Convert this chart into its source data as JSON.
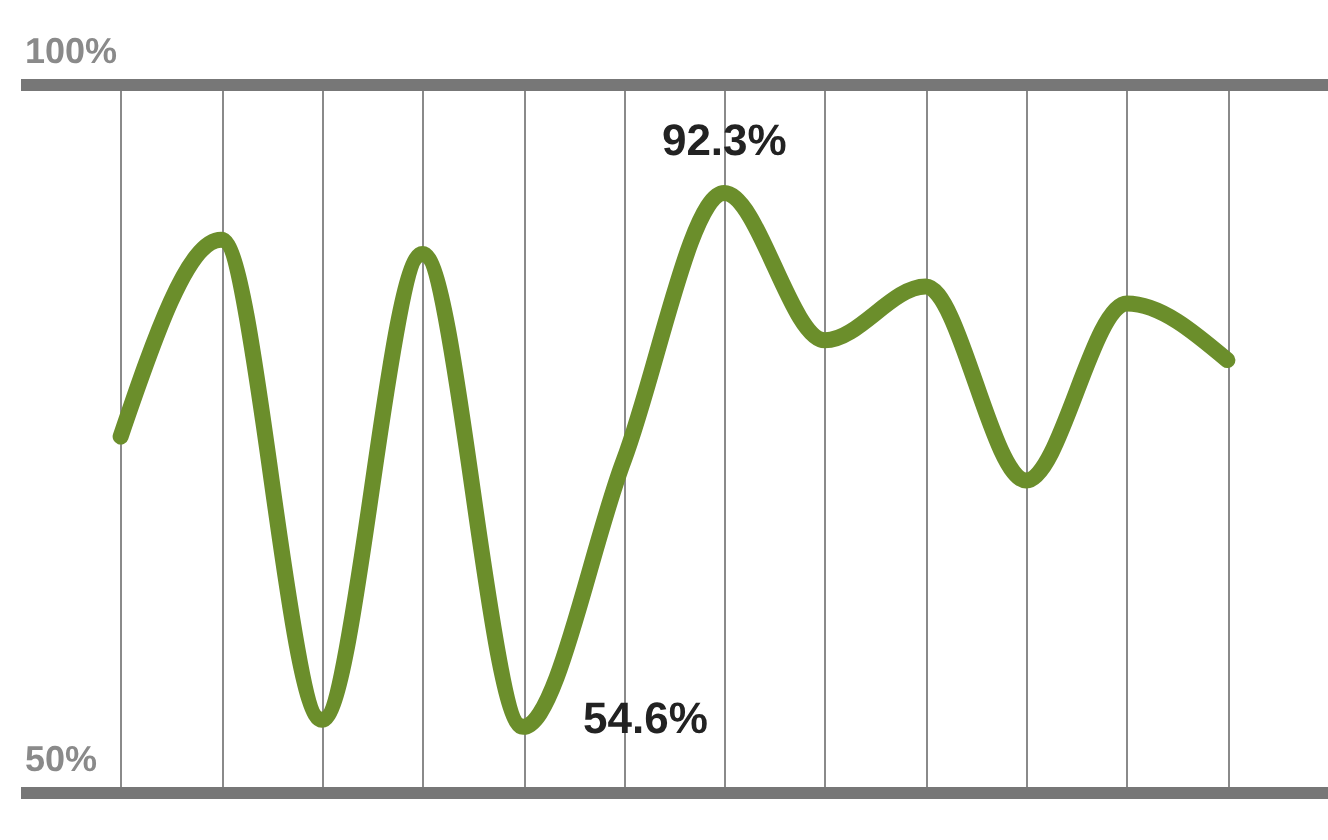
{
  "chart_data": {
    "type": "line",
    "categories": [
      null,
      null,
      null,
      null,
      null,
      null,
      null,
      null,
      null,
      null,
      null,
      null
    ],
    "series": [
      {
        "color": "#6b8e2b",
        "values": [
          75.1,
          89.0,
          55.1,
          88.0,
          54.6,
          73.4,
          92.3,
          81.9,
          85.7,
          72.0,
          84.5,
          80.5
        ],
        "value_labels": [
          null,
          null,
          null,
          null,
          "54.6%",
          null,
          "92.3%",
          null,
          null,
          null,
          null,
          null
        ]
      }
    ],
    "ylim": [
      50,
      100
    ],
    "yticks": [
      {
        "value": 100,
        "label": "100%"
      },
      {
        "value": 50,
        "label": "50%"
      }
    ],
    "grid": true,
    "tick_labels": "y",
    "marker": "none",
    "line_style": "solid"
  }
}
